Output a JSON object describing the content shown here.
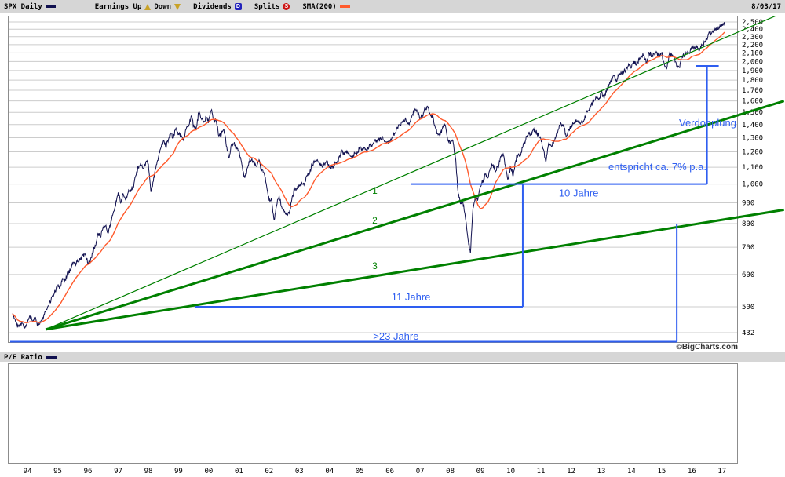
{
  "header": {
    "symbol_label": "SPX Daily",
    "earnings_label": "Earnings Up",
    "down_label": "Down",
    "dividends_label": "Dividends",
    "dividends_badge": "D",
    "splits_label": "Splits",
    "splits_badge": "S",
    "sma_label": "SMA(200)",
    "date": "8/03/17"
  },
  "pe_panel": {
    "label": "P/E Ratio"
  },
  "watermark": "©BigCharts.com",
  "colors": {
    "price": "#10104f",
    "sma": "#ff5a2c",
    "trend": "#008000",
    "annotation": "#2e5ef0",
    "grid": "#cccccc",
    "frame": "#8c8c8c",
    "bar_bg": "#d6d6d6",
    "text": "#000000"
  },
  "chart_data": {
    "type": "line",
    "title": "SPX Daily",
    "y_scale": "log",
    "y_range": [
      432,
      2500
    ],
    "x_range": [
      1993.9,
      2017.92
    ],
    "y_ticks": [
      2500,
      2400,
      2300,
      2200,
      2100,
      2000,
      1900,
      1800,
      1700,
      1600,
      1500,
      1400,
      1300,
      1200,
      1100,
      1000,
      900,
      800,
      700,
      600,
      500,
      432
    ],
    "y_tick_labels": [
      "2,500",
      "2,400",
      "2,300",
      "2,200",
      "2,100",
      "2,000",
      "1,900",
      "1,800",
      "1,700",
      "1,600",
      "1,500",
      "1,400",
      "1,300",
      "1,200",
      "1,100",
      "1,000",
      "900",
      "800",
      "700",
      "600",
      "500",
      "432"
    ],
    "x_tick_years": [
      1994,
      1995,
      1996,
      1997,
      1998,
      1999,
      2000,
      2001,
      2002,
      2003,
      2004,
      2005,
      2006,
      2007,
      2008,
      2009,
      2010,
      2011,
      2012,
      2013,
      2014,
      2015,
      2016,
      2017
    ],
    "x_tick_labels": [
      "94",
      "95",
      "96",
      "97",
      "98",
      "99",
      "00",
      "01",
      "02",
      "03",
      "04",
      "05",
      "06",
      "07",
      "08",
      "09",
      "10",
      "11",
      "12",
      "13",
      "14",
      "15",
      "16",
      "17"
    ],
    "series": [
      {
        "name": "SPX close (monthly approximation)",
        "color_key": "price",
        "start_year": 1994.0,
        "step_years": 0.0833333,
        "values": [
          481,
          467,
          445,
          450,
          456,
          444,
          458,
          475,
          462,
          472,
          453,
          459,
          470,
          487,
          500,
          514,
          533,
          544,
          562,
          561,
          584,
          581,
          605,
          615,
          636,
          640,
          645,
          654,
          669,
          670,
          639,
          651,
          687,
          705,
          757,
          740,
          786,
          790,
          757,
          801,
          848,
          885,
          954,
          899,
          947,
          914,
          955,
          970,
          980,
          1049,
          1101,
          1111,
          1090,
          1133,
          1120,
          957,
          1017,
          1098,
          1163,
          1229,
          1279,
          1238,
          1286,
          1335,
          1301,
          1372,
          1328,
          1320,
          1282,
          1362,
          1388,
          1469,
          1394,
          1366,
          1498,
          1452,
          1420,
          1454,
          1430,
          1517,
          1436,
          1429,
          1314,
          1320,
          1366,
          1239,
          1160,
          1249,
          1255,
          1224,
          1211,
          1133,
          1040,
          1059,
          1139,
          1148,
          1130,
          1106,
          1147,
          1076,
          1067,
          989,
          911,
          916,
          815,
          885,
          936,
          879,
          855,
          841,
          848,
          916,
          963,
          974,
          990,
          1008,
          995,
          1050,
          1058,
          1112,
          1131,
          1144,
          1126,
          1107,
          1120,
          1140,
          1101,
          1104,
          1114,
          1130,
          1173,
          1212,
          1181,
          1203,
          1180,
          1156,
          1191,
          1191,
          1234,
          1220,
          1228,
          1207,
          1249,
          1248,
          1280,
          1280,
          1294,
          1310,
          1270,
          1270,
          1276,
          1303,
          1335,
          1377,
          1400,
          1418,
          1438,
          1406,
          1420,
          1482,
          1530,
          1503,
          1455,
          1473,
          1526,
          1549,
          1481,
          1468,
          1378,
          1330,
          1322,
          1385,
          1400,
          1280,
          1267,
          1282,
          1166,
          968,
          896,
          903,
          825,
          735,
          676,
          872,
          919,
          919,
          987,
          1020,
          1057,
          1036,
          1095,
          1115,
          1073,
          1104,
          1169,
          1186,
          1089,
          1030,
          1101,
          1049,
          1141,
          1183,
          1180,
          1257,
          1286,
          1327,
          1325,
          1363,
          1345,
          1320,
          1292,
          1218,
          1131,
          1253,
          1246,
          1257,
          1312,
          1365,
          1408,
          1397,
          1310,
          1362,
          1379,
          1406,
          1440,
          1412,
          1416,
          1426,
          1498,
          1514,
          1569,
          1597,
          1630,
          1606,
          1685,
          1632,
          1681,
          1756,
          1805,
          1848,
          1782,
          1859,
          1872,
          1883,
          1923,
          1960,
          1930,
          2003,
          1972,
          2018,
          2067,
          2058,
          1994,
          2104,
          2067,
          2085,
          2107,
          2063,
          2103,
          1972,
          1920,
          2079,
          2080,
          2043,
          1940,
          1932,
          2059,
          2065,
          2096,
          2098,
          2173,
          2170,
          2168,
          2126,
          2198,
          2238,
          2278,
          2363,
          2362,
          2384,
          2411,
          2423,
          2470,
          2472
        ]
      }
    ],
    "sma": {
      "name": "SMA(200)",
      "color_key": "sma",
      "window_points": 10
    },
    "trendlines": [
      {
        "label": "1",
        "x1": 1995.1,
        "v1": 440,
        "x2": 2019.55,
        "v2": 2640,
        "width": 1.2
      },
      {
        "label": "2",
        "x1": 1995.1,
        "v1": 440,
        "x2": 2019.55,
        "v2": 1600,
        "width": 3
      },
      {
        "label": "3",
        "x1": 1995.1,
        "v1": 440,
        "x2": 2019.55,
        "v2": 865,
        "width": 3
      }
    ],
    "trend_labels": [
      {
        "text": "1",
        "x": 2006.0,
        "v": 963
      },
      {
        "text": "2",
        "x": 2006.0,
        "v": 815
      },
      {
        "text": "3",
        "x": 2006.0,
        "v": 630
      }
    ],
    "annotations": {
      "ten_jahre": {
        "label": "10 Jahre",
        "value": 1000,
        "year_start": 2007.2,
        "year_end": 2017.0,
        "label_year": 2012.75
      },
      "bracket": {
        "label": "Verdopplung",
        "year": 2017.0,
        "value_from": 1000,
        "value_to": 1950,
        "label_value": 1410
      },
      "seven_pct": {
        "label": "entspricht ca. 7% p.a.",
        "label_value": 1100
      },
      "eleven_jahre": {
        "label": "11 Jahre",
        "value": 500,
        "year_start": 2000.05,
        "year_end": 2010.9,
        "vert_value_to": 1000,
        "label_year": 2007.2
      },
      "twentythree": {
        "label": ">23 Jahre",
        "year_start": 1993.93,
        "year_end": 2016.0,
        "vert_value_to": 800,
        "label_year": 2006.7
      }
    }
  }
}
